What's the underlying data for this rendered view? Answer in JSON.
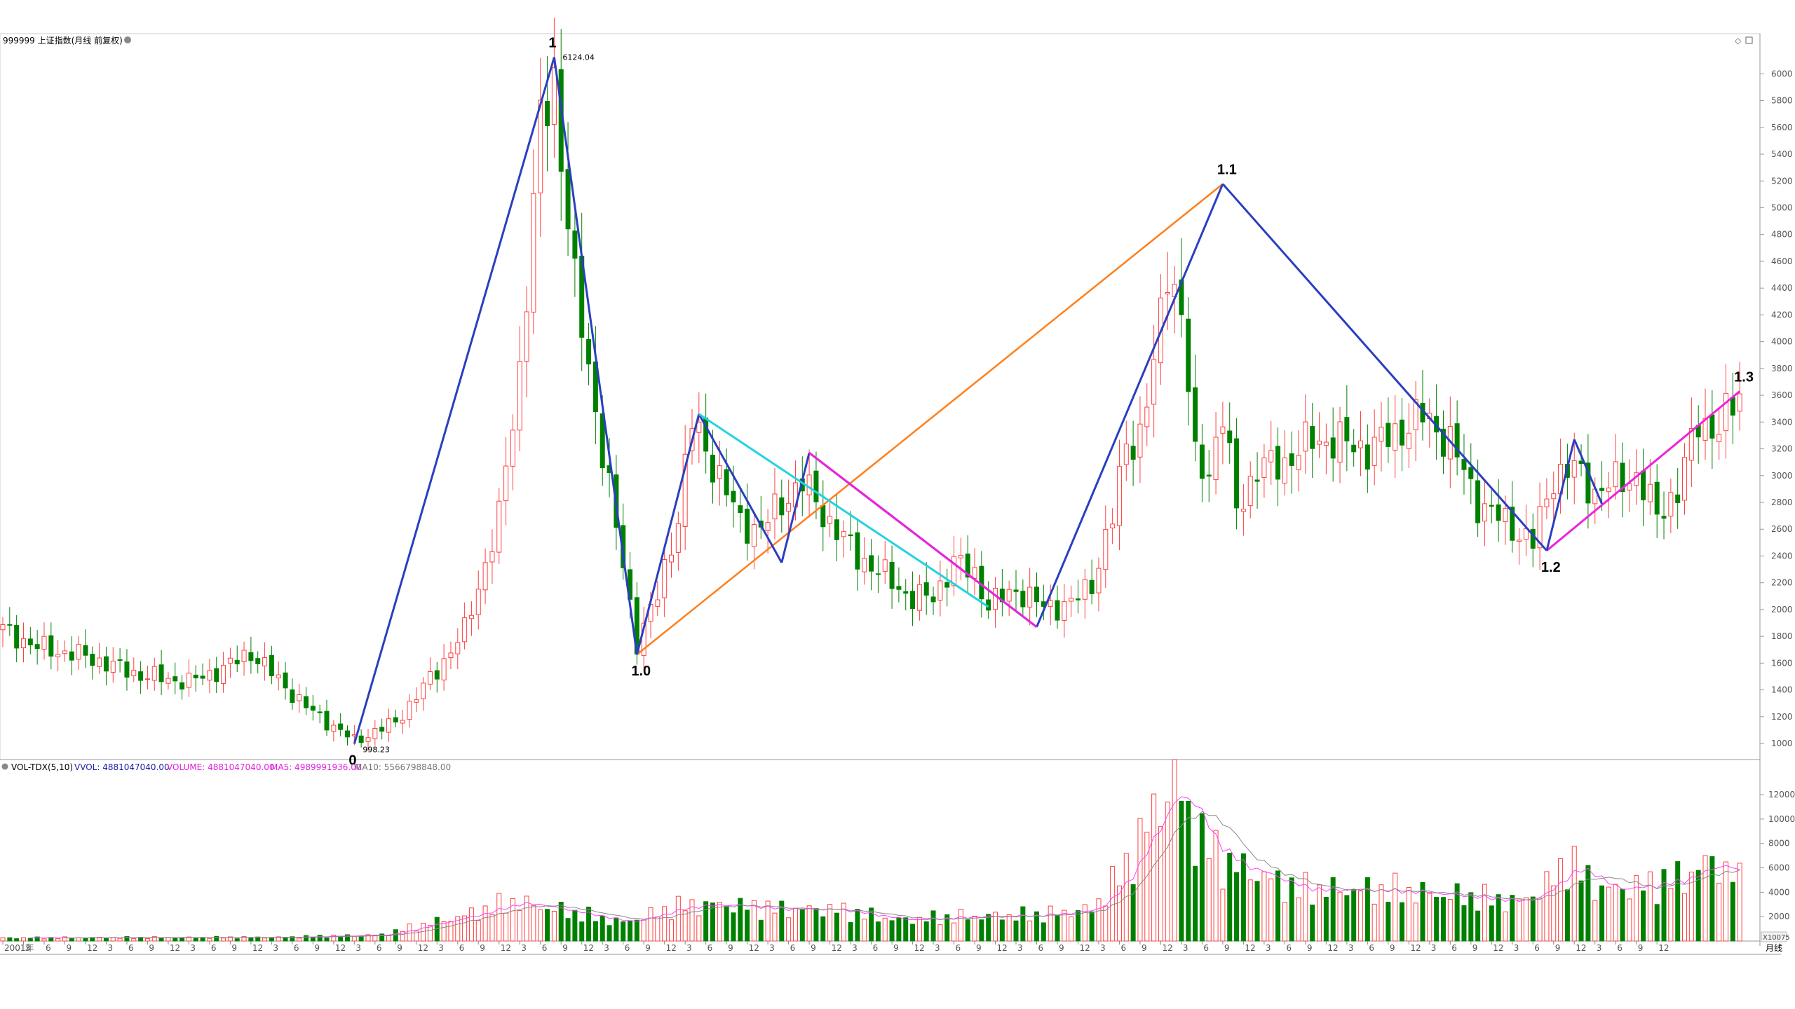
{
  "header": {
    "title": "999999 上证指数(月线 前复权)"
  },
  "volume_header": {
    "indicator": "VOL-TDX(5,10)",
    "vvol": "VVOL: 4881047040.00",
    "volume": "VOLUME: 4881047040.00",
    "ma5": "MA5: 4989991936.00",
    "ma10": "MA10: 5566798848.00"
  },
  "period_label": "月线",
  "volume_unit": "X10075",
  "colors": {
    "up": "#ff4040",
    "down": "#008000",
    "wave_main": "#2a3fc0",
    "wave_orange": "#ff7f1a",
    "wave_cyan": "#22d3e0",
    "wave_magenta": "#ee22dd",
    "ma5": "#ff40ff",
    "ma10": "#888888"
  },
  "chart_data": [
    {
      "type": "candlestick",
      "title": "999999 上证指数(月线 前复权)",
      "ylim": [
        880,
        6300
      ],
      "y_ticks": [
        1000,
        1200,
        1400,
        1600,
        1800,
        2000,
        2200,
        2400,
        2600,
        2800,
        3000,
        3200,
        3400,
        3600,
        3800,
        4000,
        4200,
        4400,
        4600,
        4800,
        5000,
        5200,
        5400,
        5600,
        5800,
        6000
      ],
      "x_ticks": [
        "2001年",
        "3",
        "6",
        "9",
        "12",
        "3",
        "6",
        "9",
        "12",
        "3",
        "6",
        "9",
        "12",
        "3",
        "6",
        "9",
        "12",
        "3",
        "6",
        "9",
        "12",
        "3",
        "6",
        "9",
        "12",
        "3",
        "6",
        "9",
        "12",
        "3",
        "6",
        "9",
        "12",
        "3",
        "6",
        "9",
        "12",
        "3",
        "6",
        "9",
        "12",
        "3",
        "6",
        "9",
        "12",
        "3",
        "6",
        "9",
        "12",
        "3",
        "6",
        "9",
        "12",
        "3",
        "6",
        "9",
        "12",
        "3",
        "6",
        "9",
        "12",
        "3",
        "6",
        "9",
        "12",
        "3",
        "6",
        "9",
        "12",
        "3",
        "6",
        "9",
        "12",
        "3",
        "6",
        "9",
        "12",
        "3",
        "6",
        "9",
        "12"
      ],
      "anchors": [
        {
          "month": 0,
          "close": 1850
        },
        {
          "month": 5,
          "close": 1720
        },
        {
          "month": 12,
          "close": 1650
        },
        {
          "month": 20,
          "close": 1510
        },
        {
          "month": 27,
          "close": 1460
        },
        {
          "month": 32,
          "close": 1560
        },
        {
          "month": 36,
          "close": 1680
        },
        {
          "month": 44,
          "close": 1270
        },
        {
          "month": 51,
          "close": 1020
        },
        {
          "month": 57,
          "close": 1160
        },
        {
          "month": 63,
          "close": 1550
        },
        {
          "month": 67,
          "close": 1840
        },
        {
          "month": 72,
          "close": 2680
        },
        {
          "month": 75,
          "close": 3800
        },
        {
          "month": 78,
          "close": 5600
        },
        {
          "month": 80,
          "close": 5950
        },
        {
          "month": 83,
          "close": 4400
        },
        {
          "month": 86,
          "close": 3500
        },
        {
          "month": 89,
          "close": 2600
        },
        {
          "month": 92,
          "close": 1760
        },
        {
          "month": 95,
          "close": 2100
        },
        {
          "month": 98,
          "close": 2700
        },
        {
          "month": 100,
          "close": 3400
        },
        {
          "month": 103,
          "close": 3100
        },
        {
          "month": 107,
          "close": 2650
        },
        {
          "month": 110,
          "close": 2600
        },
        {
          "month": 113,
          "close": 2800
        },
        {
          "month": 116,
          "close": 2950
        },
        {
          "month": 120,
          "close": 2650
        },
        {
          "month": 124,
          "close": 2400
        },
        {
          "month": 128,
          "close": 2250
        },
        {
          "month": 132,
          "close": 2080
        },
        {
          "month": 135,
          "close": 2100
        },
        {
          "month": 138,
          "close": 2350
        },
        {
          "month": 141,
          "close": 2270
        },
        {
          "month": 143,
          "close": 2030
        },
        {
          "month": 147,
          "close": 2150
        },
        {
          "month": 151,
          "close": 2020
        },
        {
          "month": 155,
          "close": 2040
        },
        {
          "month": 158,
          "close": 2200
        },
        {
          "month": 161,
          "close": 2680
        },
        {
          "month": 163,
          "close": 3250
        },
        {
          "month": 165,
          "close": 3300
        },
        {
          "month": 167,
          "close": 3800
        },
        {
          "month": 169,
          "close": 4600
        },
        {
          "month": 171,
          "close": 4200
        },
        {
          "month": 173,
          "close": 3100
        },
        {
          "month": 175,
          "close": 3050
        },
        {
          "month": 177,
          "close": 3450
        },
        {
          "month": 179,
          "close": 2750
        },
        {
          "month": 182,
          "close": 3050
        },
        {
          "month": 186,
          "close": 3100
        },
        {
          "month": 190,
          "close": 3270
        },
        {
          "month": 194,
          "close": 3250
        },
        {
          "month": 198,
          "close": 3200
        },
        {
          "month": 202,
          "close": 3310
        },
        {
          "month": 206,
          "close": 3450
        },
        {
          "month": 210,
          "close": 3250
        },
        {
          "month": 214,
          "close": 2800
        },
        {
          "month": 218,
          "close": 2650
        },
        {
          "month": 222,
          "close": 2500
        },
        {
          "month": 225,
          "close": 3000
        },
        {
          "month": 228,
          "close": 3050
        },
        {
          "month": 231,
          "close": 2880
        },
        {
          "month": 234,
          "close": 2950
        },
        {
          "month": 237,
          "close": 3000
        },
        {
          "month": 240,
          "close": 2700
        },
        {
          "month": 243,
          "close": 2900
        },
        {
          "month": 246,
          "close": 3400
        },
        {
          "month": 249,
          "close": 3350
        },
        {
          "month": 252,
          "close": 3600
        }
      ],
      "wave_points": [
        {
          "label": "0",
          "month": 51,
          "price": 998.23,
          "price_label": "998.23"
        },
        {
          "label": "1",
          "month": 80,
          "price": 6124.04,
          "price_label": "6124.04"
        },
        {
          "label": "1.0",
          "month": 92,
          "price": 1664
        },
        {
          "label": "1.1",
          "month": 177,
          "price": 5178
        },
        {
          "label": "1.2",
          "month": 224,
          "price": 2440
        },
        {
          "label": "1.3",
          "month": 252,
          "price": 3630
        }
      ]
    },
    {
      "type": "bar",
      "title": "VOL-TDX(5,10)",
      "ylim": [
        0,
        13500
      ],
      "y_ticks": [
        2000,
        4000,
        6000,
        8000,
        10000,
        12000
      ],
      "vol_anchors": [
        {
          "month": 0,
          "value": 250
        },
        {
          "month": 40,
          "value": 300
        },
        {
          "month": 55,
          "value": 500
        },
        {
          "month": 60,
          "value": 1200
        },
        {
          "month": 68,
          "value": 2200
        },
        {
          "month": 74,
          "value": 3200
        },
        {
          "month": 80,
          "value": 2600
        },
        {
          "month": 90,
          "value": 1500
        },
        {
          "month": 98,
          "value": 2800
        },
        {
          "month": 104,
          "value": 3000
        },
        {
          "month": 112,
          "value": 2600
        },
        {
          "month": 120,
          "value": 2600
        },
        {
          "month": 130,
          "value": 1700
        },
        {
          "month": 140,
          "value": 2000
        },
        {
          "month": 150,
          "value": 2100
        },
        {
          "month": 158,
          "value": 2600
        },
        {
          "month": 163,
          "value": 6000
        },
        {
          "month": 167,
          "value": 10500
        },
        {
          "month": 170,
          "value": 13000
        },
        {
          "month": 173,
          "value": 9000
        },
        {
          "month": 177,
          "value": 6500
        },
        {
          "month": 182,
          "value": 5500
        },
        {
          "month": 188,
          "value": 4200
        },
        {
          "month": 196,
          "value": 4200
        },
        {
          "month": 205,
          "value": 4000
        },
        {
          "month": 214,
          "value": 3500
        },
        {
          "month": 220,
          "value": 3200
        },
        {
          "month": 224,
          "value": 4500
        },
        {
          "month": 227,
          "value": 6500
        },
        {
          "month": 232,
          "value": 4200
        },
        {
          "month": 238,
          "value": 4500
        },
        {
          "month": 244,
          "value": 5200
        },
        {
          "month": 248,
          "value": 6600
        },
        {
          "month": 252,
          "value": 4900
        }
      ]
    }
  ]
}
